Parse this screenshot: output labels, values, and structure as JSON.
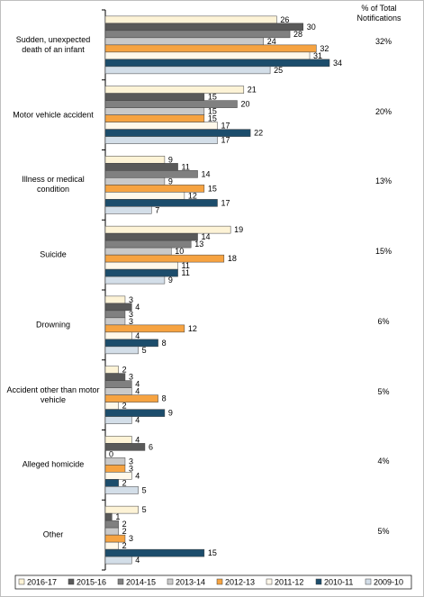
{
  "chart_data": {
    "type": "bar",
    "orientation": "horizontal",
    "side_header": "% of Total Notifications",
    "categories": [
      "Sudden, unexpected death of an infant",
      "Motor vehicle accident",
      "Illness or medical condition",
      "Suicide",
      "Drowning",
      "Accident other than motor vehicle",
      "Alleged homicide",
      "Other"
    ],
    "side_labels": [
      "32%",
      "20%",
      "13%",
      "15%",
      "6%",
      "5%",
      "4%",
      "5%"
    ],
    "series": [
      {
        "name": "2016-17",
        "color": "#fdf3d6",
        "values": [
          26,
          21,
          9,
          19,
          3,
          2,
          4,
          5
        ]
      },
      {
        "name": "2015-16",
        "color": "#595959",
        "values": [
          30,
          15,
          11,
          14,
          4,
          3,
          6,
          1
        ]
      },
      {
        "name": "2014-15",
        "color": "#808080",
        "values": [
          28,
          20,
          14,
          13,
          3,
          4,
          0,
          2
        ]
      },
      {
        "name": "2013-14",
        "color": "#c9c9c9",
        "values": [
          24,
          15,
          9,
          10,
          3,
          4,
          3,
          2
        ]
      },
      {
        "name": "2012-13",
        "color": "#f6a341",
        "values": [
          32,
          15,
          15,
          18,
          12,
          8,
          3,
          3
        ]
      },
      {
        "name": "2011-12",
        "color": "#fff8ea",
        "values": [
          31,
          17,
          12,
          11,
          4,
          2,
          4,
          2
        ]
      },
      {
        "name": "2010-11",
        "color": "#1c4d6c",
        "values": [
          34,
          22,
          17,
          11,
          8,
          9,
          2,
          15
        ]
      },
      {
        "name": "2009-10",
        "color": "#d3dee8",
        "values": [
          25,
          17,
          7,
          9,
          5,
          4,
          5,
          4
        ]
      }
    ]
  }
}
